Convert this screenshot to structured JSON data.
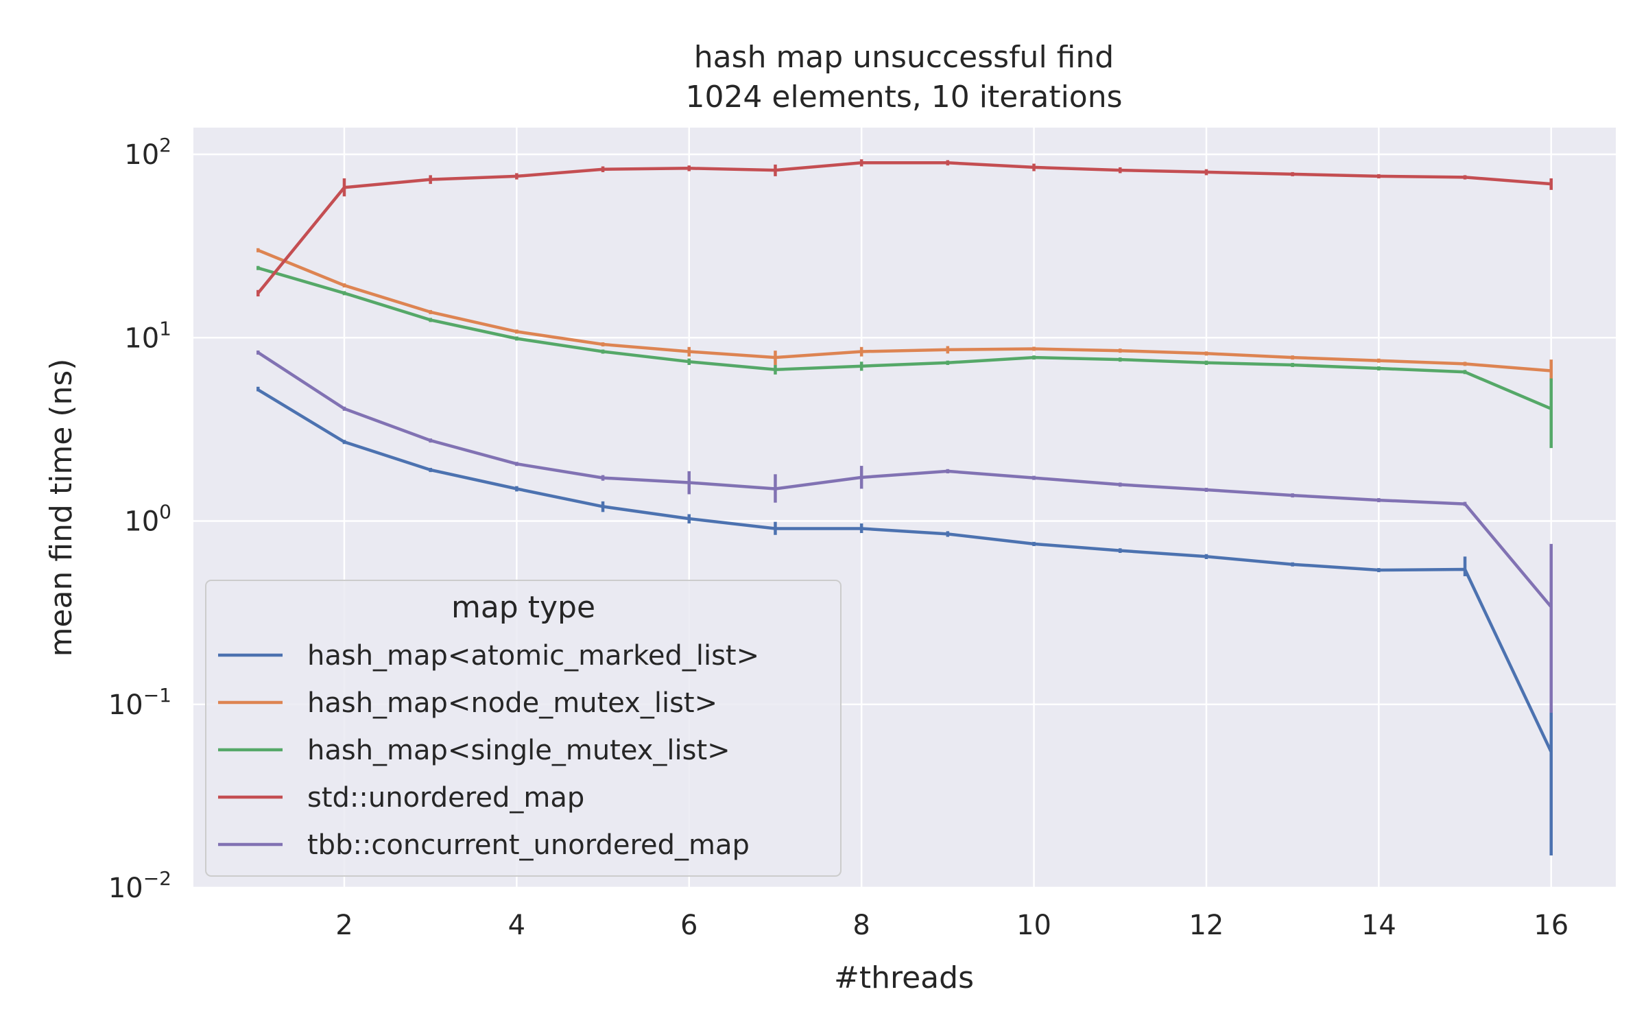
{
  "chart_data": {
    "type": "line",
    "title": "hash map unsuccessful find",
    "subtitle": "1024 elements, 10 iterations",
    "xlabel": "#threads",
    "ylabel": "mean find time (ns)",
    "yscale": "log",
    "ylim": [
      0.01,
      140
    ],
    "xlim": [
      0.25,
      16.75
    ],
    "x_ticks": [
      2,
      4,
      6,
      8,
      10,
      12,
      14,
      16
    ],
    "y_ticks": [
      0.01,
      0.1,
      1,
      10,
      100
    ],
    "y_tick_labels": [
      {
        "base": "10",
        "exp": "−2"
      },
      {
        "base": "10",
        "exp": "−1"
      },
      {
        "base": "10",
        "exp": "0"
      },
      {
        "base": "10",
        "exp": "1"
      },
      {
        "base": "10",
        "exp": "2"
      }
    ],
    "grid": true,
    "background_color": "#eaeaf2",
    "legend": {
      "title": "map type",
      "position": "lower-left"
    },
    "x": [
      1,
      2,
      3,
      4,
      5,
      6,
      7,
      8,
      9,
      10,
      11,
      12,
      13,
      14,
      15,
      16
    ],
    "series": [
      {
        "name": "hash_map<atomic_marked_list>",
        "color": "#4c72b0",
        "values": [
          5.2,
          2.7,
          1.9,
          1.5,
          1.2,
          1.03,
          0.91,
          0.91,
          0.85,
          0.75,
          0.69,
          0.64,
          0.58,
          0.54,
          0.545,
          0.055
        ],
        "err_low": [
          5.1,
          2.65,
          1.85,
          1.45,
          1.12,
          0.97,
          0.84,
          0.86,
          0.82,
          0.73,
          0.67,
          0.62,
          0.57,
          0.53,
          0.5,
          0.015
        ],
        "err_high": [
          5.4,
          2.75,
          1.95,
          1.55,
          1.28,
          1.09,
          0.99,
          0.97,
          0.88,
          0.77,
          0.71,
          0.66,
          0.59,
          0.55,
          0.64,
          0.095
        ]
      },
      {
        "name": "hash_map<node_mutex_list>",
        "color": "#dd8452",
        "values": [
          30,
          19.3,
          13.8,
          10.8,
          9.2,
          8.4,
          7.8,
          8.4,
          8.6,
          8.7,
          8.5,
          8.2,
          7.8,
          7.5,
          7.2,
          6.6
        ],
        "err_low": [
          29.5,
          19,
          13.5,
          10.6,
          9.0,
          7.9,
          7.1,
          7.9,
          8.2,
          8.5,
          8.3,
          8.0,
          7.7,
          7.4,
          7.1,
          5.8
        ],
        "err_high": [
          30.5,
          19.6,
          14.1,
          11.0,
          9.4,
          8.9,
          8.5,
          8.9,
          9.0,
          8.9,
          8.7,
          8.4,
          7.9,
          7.6,
          7.3,
          7.6
        ]
      },
      {
        "name": "hash_map<single_mutex_list>",
        "color": "#55a868",
        "values": [
          24,
          17.5,
          12.5,
          9.9,
          8.4,
          7.4,
          6.7,
          7.0,
          7.3,
          7.8,
          7.6,
          7.3,
          7.1,
          6.8,
          6.5,
          4.1
        ],
        "err_low": [
          23.5,
          17.2,
          12.2,
          9.7,
          8.2,
          7.1,
          6.3,
          6.6,
          7.1,
          7.6,
          7.4,
          7.1,
          7.0,
          6.7,
          6.4,
          2.5
        ],
        "err_high": [
          24.5,
          17.8,
          12.8,
          10.1,
          8.6,
          7.7,
          7.1,
          7.4,
          7.5,
          8.0,
          7.8,
          7.5,
          7.2,
          6.9,
          6.6,
          6.0
        ]
      },
      {
        "name": "std::unordered_map",
        "color": "#c44e52",
        "values": [
          17.5,
          66,
          73,
          76,
          83,
          84,
          82,
          90,
          90,
          85,
          82,
          80,
          78,
          76,
          75,
          69
        ],
        "err_low": [
          16.8,
          59,
          69,
          73,
          80,
          81,
          76,
          86,
          87,
          81,
          79,
          77,
          76,
          74,
          73,
          64
        ],
        "err_high": [
          18.2,
          74,
          77,
          79,
          86,
          87,
          88,
          94,
          93,
          89,
          85,
          83,
          80,
          78,
          77,
          74
        ]
      },
      {
        "name": "tbb::concurrent_unordered_map",
        "color": "#8172b3",
        "values": [
          8.3,
          4.1,
          2.75,
          2.05,
          1.72,
          1.62,
          1.5,
          1.73,
          1.87,
          1.72,
          1.58,
          1.48,
          1.38,
          1.3,
          1.24,
          0.34
        ],
        "err_low": [
          8.1,
          4.0,
          2.7,
          2.0,
          1.66,
          1.4,
          1.26,
          1.5,
          1.82,
          1.68,
          1.55,
          1.45,
          1.36,
          1.28,
          1.22,
          0.09
        ],
        "err_high": [
          8.5,
          4.2,
          2.8,
          2.1,
          1.78,
          1.87,
          1.8,
          2.0,
          1.92,
          1.76,
          1.61,
          1.51,
          1.4,
          1.32,
          1.26,
          0.75
        ]
      }
    ]
  }
}
